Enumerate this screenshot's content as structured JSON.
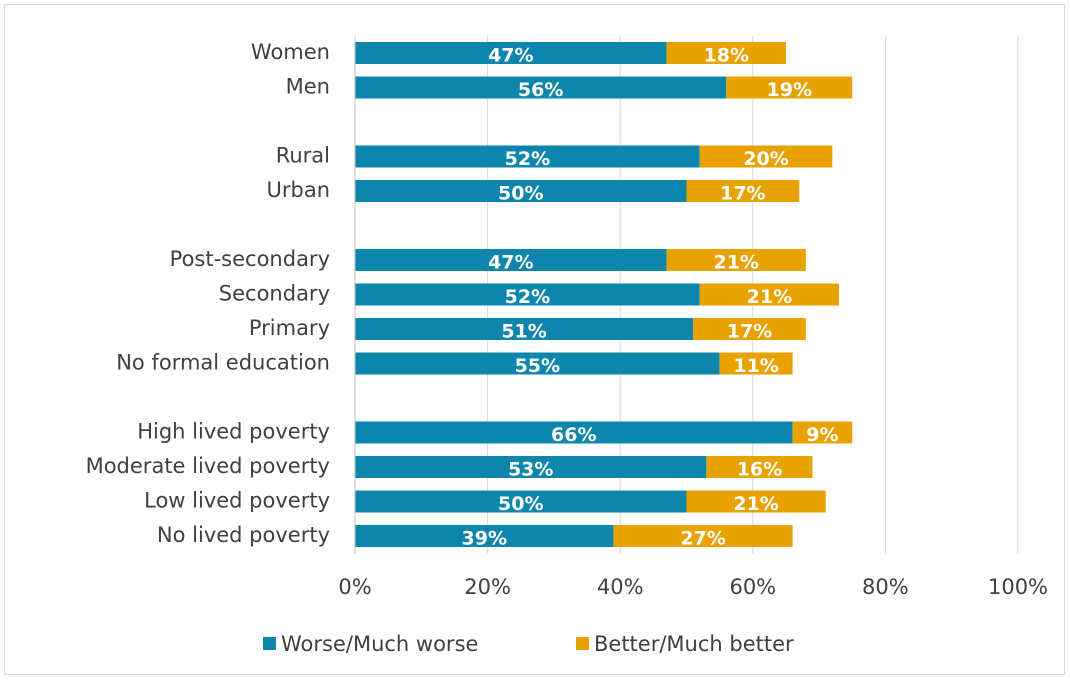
{
  "chart_data": {
    "type": "stacked-barh",
    "categories": [
      "Women",
      "Men",
      null,
      "Rural",
      "Urban",
      null,
      "Post-secondary",
      "Secondary",
      "Primary",
      "No formal education",
      null,
      "High lived poverty",
      "Moderate lived poverty",
      "Low lived poverty",
      "No lived poverty"
    ],
    "series": [
      {
        "name": "Worse/Much worse",
        "color": "#0e86ab",
        "values": [
          47,
          56,
          null,
          52,
          50,
          null,
          47,
          52,
          51,
          55,
          null,
          66,
          53,
          50,
          39
        ],
        "value_labels": [
          "47%",
          "56%",
          null,
          "52%",
          "50%",
          null,
          "47%",
          "52%",
          "51%",
          "55%",
          null,
          "66%",
          "53%",
          "50%",
          "39%"
        ]
      },
      {
        "name": "Better/Much better",
        "color": "#e8a200",
        "values": [
          18,
          19,
          null,
          20,
          17,
          null,
          21,
          21,
          17,
          11,
          null,
          9,
          16,
          21,
          27
        ],
        "value_labels": [
          "18%",
          "19%",
          null,
          "20%",
          "17%",
          null,
          "21%",
          "21%",
          "17%",
          "11%",
          null,
          "9%",
          "16%",
          "21%",
          "27%"
        ]
      }
    ],
    "xlim": [
      0,
      100
    ],
    "xticks": [
      {
        "value": 0,
        "label": "0%"
      },
      {
        "value": 20,
        "label": "20%"
      },
      {
        "value": 40,
        "label": "40%"
      },
      {
        "value": 60,
        "label": "60%"
      },
      {
        "value": 80,
        "label": "80%"
      },
      {
        "value": 100,
        "label": "100%"
      }
    ],
    "grid": true,
    "legend": "bottom"
  }
}
